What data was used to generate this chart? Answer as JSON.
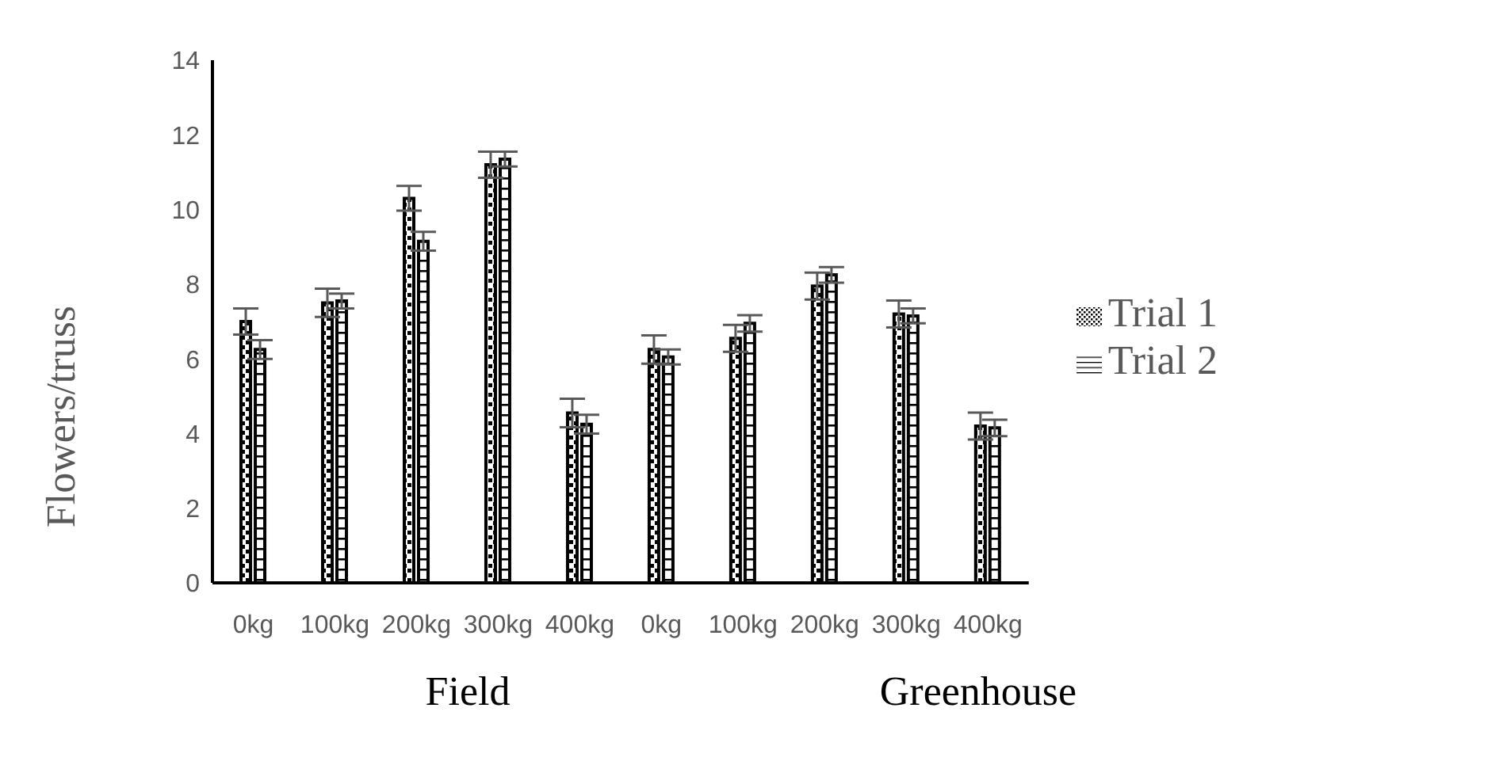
{
  "chart_data": {
    "type": "bar",
    "ylabel": "Flowers/truss",
    "categories": [
      "0kg",
      "100kg",
      "200kg",
      "300kg",
      "400kg",
      "0kg",
      "100kg",
      "200kg",
      "300kg",
      "400kg"
    ],
    "series": [
      {
        "name": "Trial 1",
        "color": "#000000",
        "values": [
          7.0,
          7.5,
          10.3,
          11.2,
          4.55,
          6.25,
          6.55,
          7.95,
          7.2,
          4.2
        ],
        "errors": [
          0.35,
          0.38,
          0.33,
          0.35,
          0.38,
          0.38,
          0.36,
          0.36,
          0.36,
          0.36
        ]
      },
      {
        "name": "Trial 2",
        "color": "#000000",
        "values": [
          6.25,
          7.55,
          9.15,
          11.35,
          4.25,
          6.05,
          6.95,
          8.25,
          7.15,
          4.15
        ],
        "errors": [
          0.25,
          0.2,
          0.25,
          0.2,
          0.25,
          0.2,
          0.22,
          0.21,
          0.2,
          0.22
        ]
      }
    ],
    "ylim": [
      0,
      14
    ],
    "yticks": [
      0,
      2,
      4,
      6,
      8,
      10,
      12,
      14
    ],
    "grid": false,
    "legend": "right",
    "annotations": [
      "Field",
      "Greenhouse"
    ]
  }
}
